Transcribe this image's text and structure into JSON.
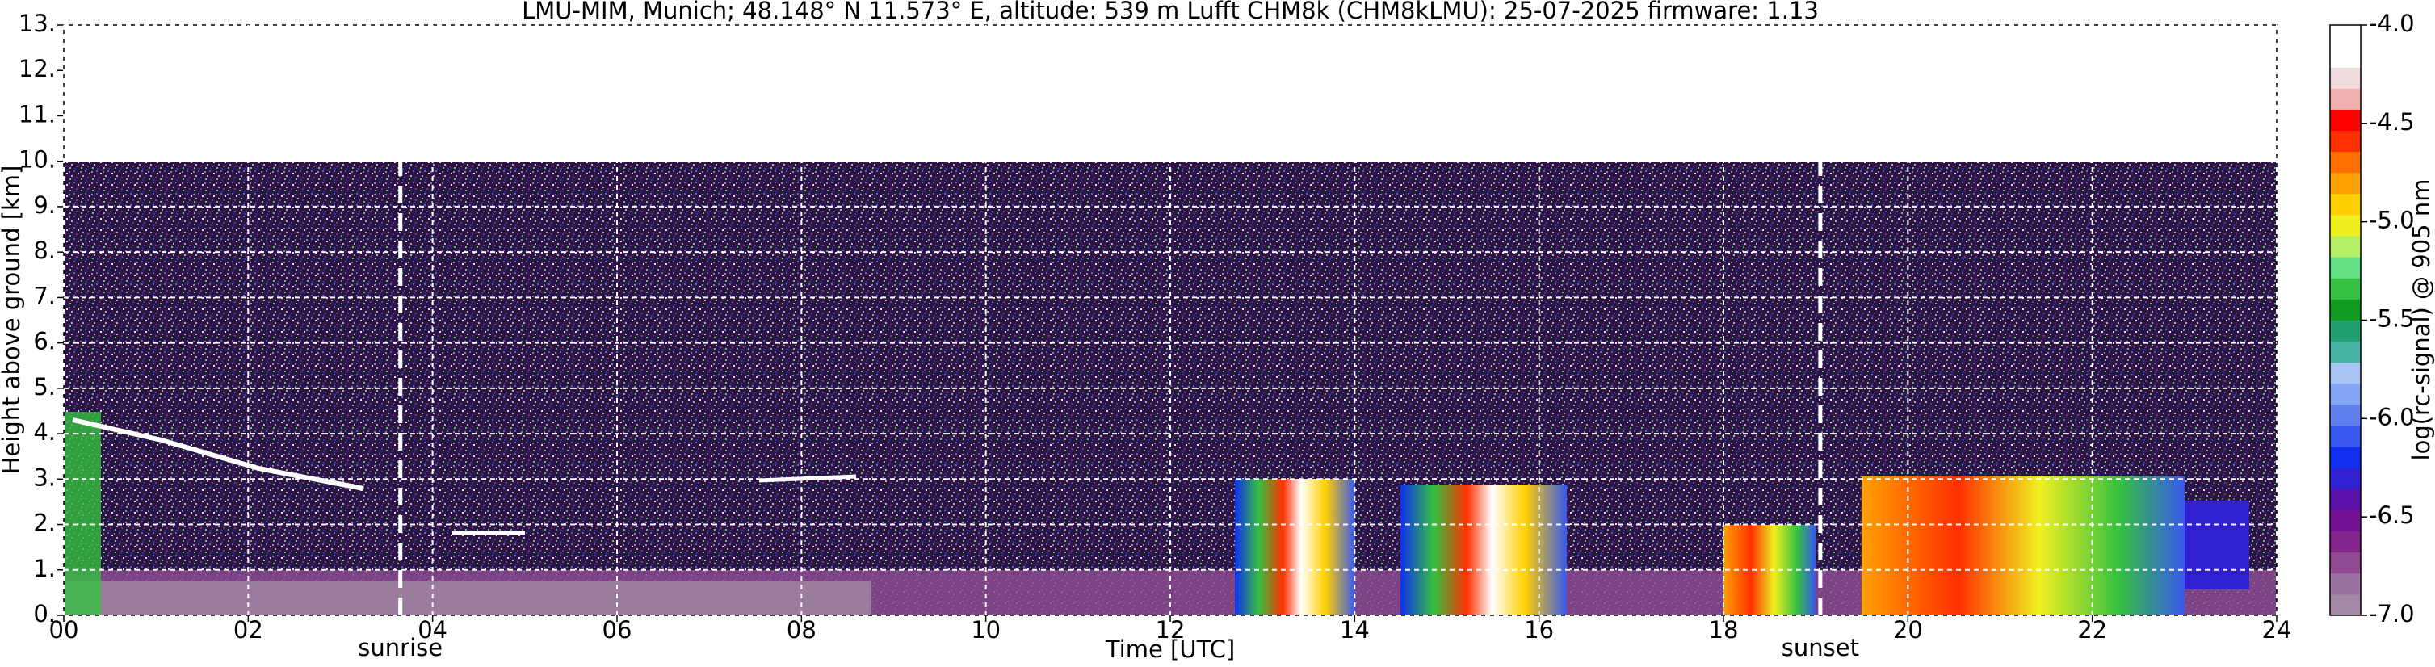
{
  "chart_data": {
    "type": "heatmap",
    "title": "LMU-MIM, Munich; 48.148° N 11.573° E, altitude: 539 m    Lufft CHM8k (CHM8kLMU): 25-07-2025    firmware: 1.13",
    "x_label": "Time [UTC]",
    "y_label": "Height above ground [km]",
    "colorbar_label": "log(rc-signal) @ 905 nm",
    "xlim": [
      0,
      24
    ],
    "xticks": [
      {
        "value": 0,
        "label": "00"
      },
      {
        "value": 2,
        "label": "02"
      },
      {
        "value": 4,
        "label": "04"
      },
      {
        "value": 6,
        "label": "06"
      },
      {
        "value": 8,
        "label": "08"
      },
      10,
      12,
      14,
      16,
      18,
      20,
      22,
      24
    ],
    "ylim": [
      0,
      13
    ],
    "yticks": [
      {
        "value": 0,
        "label": "0."
      },
      {
        "value": 1,
        "label": "1."
      },
      {
        "value": 2,
        "label": "2."
      },
      {
        "value": 3,
        "label": "3."
      },
      {
        "value": 4,
        "label": "4."
      },
      {
        "value": 5,
        "label": "5."
      },
      {
        "value": 6,
        "label": "6."
      },
      {
        "value": 7,
        "label": "7."
      },
      {
        "value": 8,
        "label": "8."
      },
      {
        "value": 9,
        "label": "9."
      },
      {
        "value": 10,
        "label": "10."
      },
      {
        "value": 11,
        "label": "11."
      },
      {
        "value": 12,
        "label": "12."
      },
      {
        "value": 13,
        "label": "13."
      }
    ],
    "grid": true,
    "clim": [
      -7,
      -4
    ],
    "cticks": [
      {
        "value": -4,
        "label": "-4.0"
      },
      {
        "value": -4.5,
        "label": "-4.5"
      },
      {
        "value": -5,
        "label": "-5.0"
      },
      {
        "value": -5.5,
        "label": "-5.5"
      },
      {
        "value": -6,
        "label": "-6.0"
      },
      {
        "value": -6.5,
        "label": "-6.5"
      },
      {
        "value": -7,
        "label": "-7.0"
      }
    ],
    "colormap": [
      "#a48aa4",
      "#9a72a0",
      "#904a92",
      "#82248a",
      "#741094",
      "#5a10a8",
      "#3020d0",
      "#1030f0",
      "#3858f0",
      "#6080f0",
      "#84a4f4",
      "#a8c4f4",
      "#48b4a4",
      "#20a070",
      "#109c20",
      "#34c040",
      "#64e084",
      "#b4f064",
      "#f0f020",
      "#ffd000",
      "#ffa000",
      "#ff7000",
      "#ff3000",
      "#ff0000",
      "#f0b0b0",
      "#f0dcdc",
      "#ffffff",
      "#ffffff"
    ],
    "events": [
      {
        "label": "sunrise",
        "x": 3.65
      },
      {
        "label": "sunset",
        "x": 19.05
      }
    ]
  }
}
